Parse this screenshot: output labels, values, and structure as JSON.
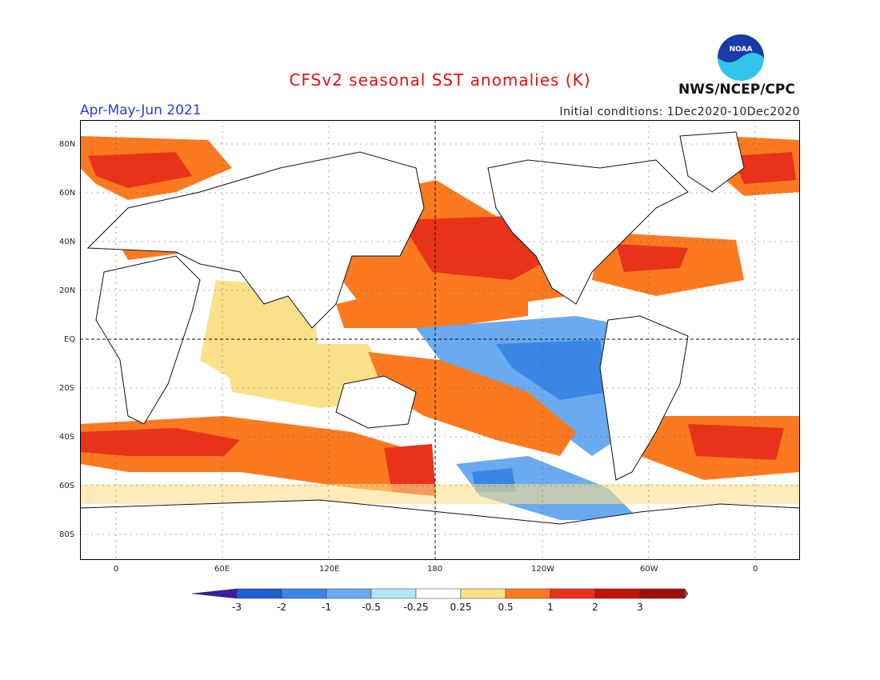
{
  "title": "CFSv2 seasonal SST anomalies (K)",
  "period": "Apr-May-Jun 2021",
  "initial_conditions": "Initial conditions: 1Dec2020-10Dec2020",
  "agency": "NWS/NCEP/CPC",
  "logo_text": "NOAA",
  "lat_labels": [
    "80N",
    "60N",
    "40N",
    "20N",
    "EQ",
    "20S",
    "40S",
    "60S",
    "80S"
  ],
  "lon_labels": [
    "0",
    "60E",
    "120E",
    "180",
    "120W",
    "60W",
    "0"
  ],
  "colorbar": {
    "labels": [
      "-3",
      "-2",
      "-1",
      "-0.5",
      "-0.25",
      "0.25",
      "0.5",
      "1",
      "2",
      "3"
    ],
    "colors": [
      "#3a1fa0",
      "#1e5fd0",
      "#3a86e6",
      "#6aaaf0",
      "#b4e6f8",
      "#ffffff",
      "#fbe08a",
      "#fb7a20",
      "#e8321a",
      "#c0140a",
      "#a01008",
      "#7a5a4a"
    ]
  }
}
